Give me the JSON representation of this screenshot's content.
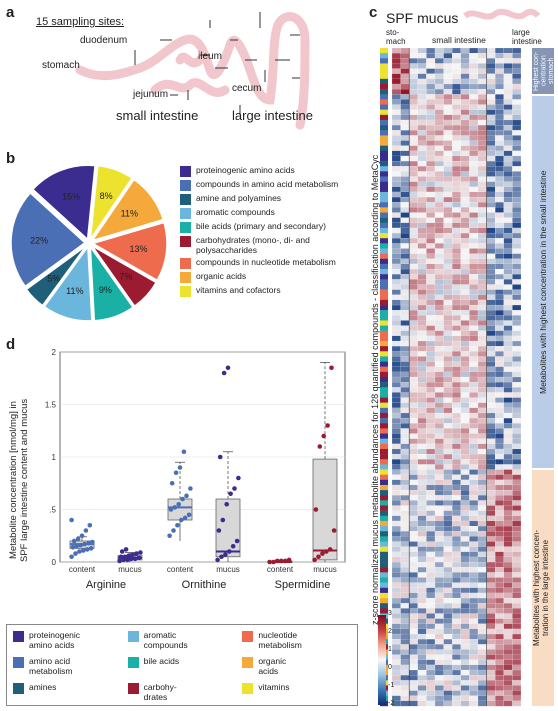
{
  "panel_a": {
    "letter": "a",
    "heading": "15 sampling sites:",
    "labels": {
      "duodenum": "duodenum",
      "stomach": "stomach",
      "ileum": "ileum",
      "jejunum": "jejunum",
      "cecum": "cecum",
      "small_intestine": "small intestine",
      "large_intestine": "large intestine"
    }
  },
  "panel_b": {
    "letter": "b",
    "legend": [
      {
        "label": "proteinogenic amino acids",
        "color": "#3b2d8f"
      },
      {
        "label": "compounds in amino acid metabolism",
        "color": "#4a6fb5"
      },
      {
        "label": "amine and polyamines",
        "color": "#1f5f7a"
      },
      {
        "label": "aromatic compounds",
        "color": "#6ab6dd"
      },
      {
        "label": "bile acids (primary and secondary)",
        "color": "#1ab0a6"
      },
      {
        "label": "carbohydrates (mono-, di- and polysaccharides",
        "color": "#9b1b30"
      },
      {
        "label": "compounds in nucleotide metabolism",
        "color": "#ee6b4d"
      },
      {
        "label": "organic acids",
        "color": "#f5a93b"
      },
      {
        "label": "vitamins and cofactors",
        "color": "#ede32e"
      }
    ]
  },
  "panel_c": {
    "letter": "c",
    "title": "SPF mucus",
    "col_headers": {
      "stomach": "sto-\nmach",
      "small": "small intestine",
      "large": "large\nintestine"
    },
    "ylabel": "z-score normalized mucus metabolite abundances for 128 quantified compounds - classification according to MetaCyc",
    "side_labels": {
      "stomach": "Highest con-\ncentration\nstomach",
      "small": "Metabolites with highest concentration in the small intestine",
      "large": "Metabolites with highest concen-\ntration in the large intestine"
    },
    "colorbar_ticks": [
      "3",
      "2",
      "1",
      "0",
      "-1",
      "-2"
    ]
  },
  "panel_d": {
    "letter": "d",
    "ylabel_line1": "Metabolite concentration [nmol/mg] in",
    "ylabel_line2": "SPF large intestine content and mucus",
    "groups": [
      "Arginine",
      "Ornithine",
      "Spermidine"
    ],
    "sublabels": [
      "content",
      "mucus",
      "content",
      "mucus",
      "content",
      "mucus"
    ]
  },
  "bottom_legend": [
    {
      "label": "proteinogenic\namino acids",
      "color": "#3b2d8f"
    },
    {
      "label": "aromatic\ncompounds",
      "color": "#6ab6dd"
    },
    {
      "label": "nucleotide\nmetabolism",
      "color": "#ee6b4d"
    },
    {
      "label": "amino acid\nmetabolism",
      "color": "#4a6fb5"
    },
    {
      "label": "bile acids",
      "color": "#1ab0a6"
    },
    {
      "label": "organic\nacids",
      "color": "#f5a93b"
    },
    {
      "label": "amines",
      "color": "#1f5f7a"
    },
    {
      "label": "carbohy-\ndrates",
      "color": "#9b1b30"
    },
    {
      "label": "vitamins",
      "color": "#ede32e"
    }
  ],
  "chart_data": [
    {
      "type": "pie",
      "categories": [
        "proteinogenic amino acids",
        "compounds in amino acid metabolism",
        "amine and polyamines",
        "aromatic compounds",
        "bile acids (primary and secondary)",
        "carbohydrates (mono-, di- and polysaccharides",
        "compounds in nucleotide metabolism",
        "organic acids",
        "vitamins and cofactors"
      ],
      "values": [
        15,
        22,
        5,
        11,
        9,
        7,
        13,
        11,
        8
      ],
      "labels": [
        "15%",
        "22%",
        "5%",
        "11%",
        "9%",
        "7%",
        "13%",
        "11%",
        "8%"
      ]
    },
    {
      "type": "scatter",
      "subtype": "box",
      "title": "",
      "ylabel": "Metabolite concentration [nmol/mg] in SPF large intestine content and mucus",
      "ylim": [
        0,
        2
      ],
      "yticks": [
        0,
        0.5,
        1,
        1.5,
        2
      ],
      "ytick_labels": [
        "0",
        ".5",
        "1",
        "1.5",
        "2"
      ],
      "grid": true,
      "series": [
        {
          "group": "Arginine",
          "sample": "content",
          "color": "#4a6fb5",
          "box": [
            0.09,
            0.13,
            0.17,
            0.2,
            0.24
          ],
          "points": [
            0.05,
            0.08,
            0.1,
            0.11,
            0.12,
            0.13,
            0.14,
            0.15,
            0.16,
            0.17,
            0.18,
            0.19,
            0.2,
            0.22,
            0.25,
            0.3,
            0.35,
            0.4
          ]
        },
        {
          "group": "Arginine",
          "sample": "mucus",
          "color": "#3b2d8f",
          "box": [
            0.0,
            0.02,
            0.04,
            0.06,
            0.09
          ],
          "points": [
            0.01,
            0.02,
            0.02,
            0.03,
            0.03,
            0.04,
            0.05,
            0.05,
            0.06,
            0.07,
            0.08,
            0.09,
            0.1,
            0.12
          ]
        },
        {
          "group": "Ornithine",
          "sample": "content",
          "color": "#4a6fb5",
          "box": [
            0.2,
            0.4,
            0.52,
            0.6,
            0.95
          ],
          "points": [
            0.25,
            0.3,
            0.35,
            0.4,
            0.42,
            0.45,
            0.5,
            0.52,
            0.55,
            0.6,
            0.63,
            0.7,
            0.75,
            0.85,
            0.9,
            1.05
          ]
        },
        {
          "group": "Ornithine",
          "sample": "mucus",
          "color": "#3b2d8f",
          "box": [
            0.0,
            0.05,
            0.1,
            0.6,
            1.05
          ],
          "points": [
            0.02,
            0.05,
            0.07,
            0.1,
            0.15,
            0.2,
            0.3,
            0.4,
            0.55,
            0.65,
            0.7,
            0.8,
            1.0,
            1.8,
            1.85
          ]
        },
        {
          "group": "Spermidine",
          "sample": "content",
          "color": "#9b1b30",
          "box": [
            0.0,
            0.0,
            0.0,
            0.01,
            0.02
          ],
          "points": [
            0.0,
            0.0,
            0.01,
            0.01,
            0.01,
            0.02
          ]
        },
        {
          "group": "Spermidine",
          "sample": "mucus",
          "color": "#9b1b30",
          "box": [
            0.0,
            0.02,
            0.11,
            0.98,
            1.9
          ],
          "points": [
            0.02,
            0.05,
            0.08,
            0.1,
            0.12,
            0.3,
            0.5,
            1.1,
            1.2,
            1.3,
            1.85
          ]
        }
      ]
    },
    {
      "type": "heatmap",
      "colorbar_range": [
        -2,
        3
      ],
      "rows": 128,
      "columns": 15
    }
  ]
}
